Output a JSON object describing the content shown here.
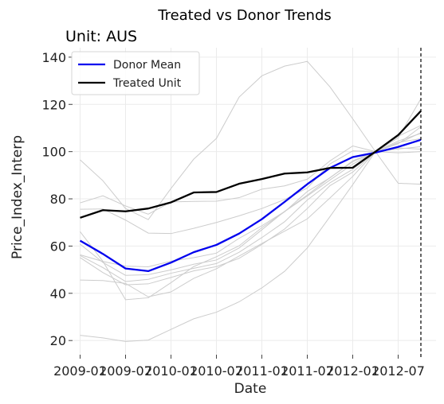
{
  "chart_data": {
    "type": "line",
    "title": "Treated vs Donor Trends",
    "subtitle": "Unit: AUS",
    "xlabel": "Date",
    "ylabel": "Price_Index_Interp",
    "x_ticks": [
      "2009-01",
      "2009-07",
      "2010-01",
      "2010-07",
      "2011-01",
      "2011-07",
      "2012-01",
      "2012-07"
    ],
    "x_range": [
      "2008-12",
      "2012-12"
    ],
    "ylim": [
      14,
      144
    ],
    "y_ticks": [
      20,
      40,
      60,
      80,
      100,
      120,
      140
    ],
    "grid": true,
    "legend_position": "top-left",
    "treatment_marker": "2012-10",
    "x": [
      "2009-01",
      "2009-04",
      "2009-07",
      "2009-10",
      "2010-01",
      "2010-04",
      "2010-07",
      "2010-10",
      "2011-01",
      "2011-04",
      "2011-07",
      "2011-10",
      "2012-01",
      "2012-04",
      "2012-07",
      "2012-10"
    ],
    "series": [
      {
        "name": "Donor Mean",
        "color": "#0000ee",
        "values": [
          62.3,
          56.7,
          50.5,
          49.4,
          53.0,
          57.4,
          60.5,
          65.3,
          71.4,
          78.7,
          86.2,
          93.1,
          97.7,
          99.6,
          102.0,
          105.0
        ]
      },
      {
        "name": "Treated Unit",
        "color": "#000000",
        "values": [
          72.0,
          75.2,
          74.7,
          75.9,
          78.5,
          82.7,
          82.9,
          86.4,
          88.4,
          90.7,
          91.2,
          93.1,
          93.2,
          100.0,
          107.0,
          117.2
        ]
      }
    ],
    "donors": [
      {
        "color": "#cccccc",
        "values": [
          96.5,
          87.7,
          75.9,
          71.2,
          84.4,
          96.8,
          105.6,
          123.1,
          132.1,
          136.2,
          138.2,
          127.4,
          113.9,
          100.0,
          86.6,
          86.2
        ]
      },
      {
        "color": "#cccccc",
        "values": [
          78.3,
          81.3,
          77.0,
          73.5,
          78.7,
          78.9,
          79.0,
          80.5,
          84.1,
          85.5,
          88.3,
          96.1,
          102.4,
          100.0,
          99.5,
          100.0
        ]
      },
      {
        "color": "#cccccc",
        "values": [
          75.6,
          75.7,
          71.0,
          65.5,
          65.3,
          67.5,
          70.0,
          72.8,
          75.9,
          79.7,
          84.6,
          94.8,
          100.3,
          100.0,
          103.5,
          108.0
        ]
      },
      {
        "color": "#cccccc",
        "values": [
          66.1,
          53.6,
          37.3,
          38.1,
          44.5,
          51.3,
          55.5,
          60.1,
          67.8,
          74.5,
          83.1,
          88.9,
          96.1,
          100.0,
          106.5,
          111.1
        ]
      },
      {
        "color": "#cccccc",
        "values": [
          60.8,
          53.1,
          47.6,
          47.9,
          49.9,
          52.3,
          54.1,
          59.2,
          66.9,
          74.7,
          81.6,
          89.0,
          95.7,
          100.0,
          105.8,
          122.4
        ]
      },
      {
        "color": "#cccccc",
        "values": [
          56.3,
          53.5,
          51.5,
          51.2,
          53.6,
          55.1,
          57.0,
          63.3,
          68.6,
          74.6,
          81.2,
          88.0,
          94.7,
          100.0,
          103.9,
          105.5
        ]
      },
      {
        "color": "#cccccc",
        "values": [
          56.0,
          50.9,
          45.0,
          45.9,
          48.5,
          50.6,
          52.6,
          57.4,
          63.6,
          70.3,
          79.5,
          86.8,
          92.5,
          100.0,
          104.5,
          107.7
        ]
      },
      {
        "color": "#cccccc",
        "values": [
          55.1,
          48.8,
          43.6,
          44.0,
          46.7,
          49.5,
          51.3,
          54.8,
          60.7,
          67.2,
          75.9,
          85.6,
          91.3,
          100.0,
          101.1,
          102.1
        ]
      },
      {
        "color": "#cccccc",
        "values": [
          45.6,
          45.4,
          44.2,
          38.5,
          40.6,
          46.3,
          50.4,
          55.8,
          61.1,
          66.3,
          71.5,
          80.4,
          89.5,
          100.0,
          101.6,
          101.0
        ]
      },
      {
        "color": "#cccccc",
        "values": [
          22.2,
          21.1,
          19.6,
          20.2,
          24.7,
          29.2,
          32.0,
          36.4,
          42.3,
          49.3,
          59.2,
          72.5,
          86.0,
          100.0,
          103.3,
          110.5
        ]
      }
    ]
  }
}
